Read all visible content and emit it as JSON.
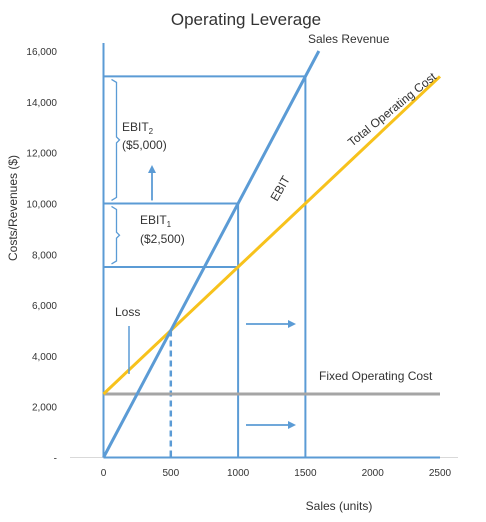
{
  "chart_data": {
    "type": "line",
    "title": "Operating Leverage",
    "xlabel": "Sales (units)",
    "ylabel": "Costs/Revenues ($)",
    "xlim": [
      0,
      2500
    ],
    "ylim": [
      0,
      16000
    ],
    "x_ticks": [
      "0",
      "500",
      "1000",
      "1500",
      "2000",
      "2500"
    ],
    "y_ticks": [
      "-",
      "2,000",
      "4,000",
      "6,000",
      "8,000",
      "10,000",
      "12,000",
      "14,000",
      "16,000"
    ],
    "grid": false,
    "series": [
      {
        "name": "Sales Revenue",
        "color": "#5b9bd5",
        "x": [
          0,
          1600
        ],
        "y": [
          0,
          16000
        ]
      },
      {
        "name": "Total Operating Cost",
        "color": "#f7c21c",
        "x": [
          0,
          2500
        ],
        "y": [
          2500,
          15000
        ]
      },
      {
        "name": "Fixed Operating Cost",
        "color": "#a5a5a5",
        "x": [
          0,
          2500
        ],
        "y": [
          2500,
          2500
        ]
      }
    ],
    "annotations": {
      "ebit_line": "EBIT",
      "loss": "Loss",
      "ebit1": {
        "label": "EBIT",
        "sub": "1",
        "value": "($2,500)"
      },
      "ebit2": {
        "label": "EBIT",
        "sub": "2",
        "value": "($5,000)"
      }
    }
  }
}
